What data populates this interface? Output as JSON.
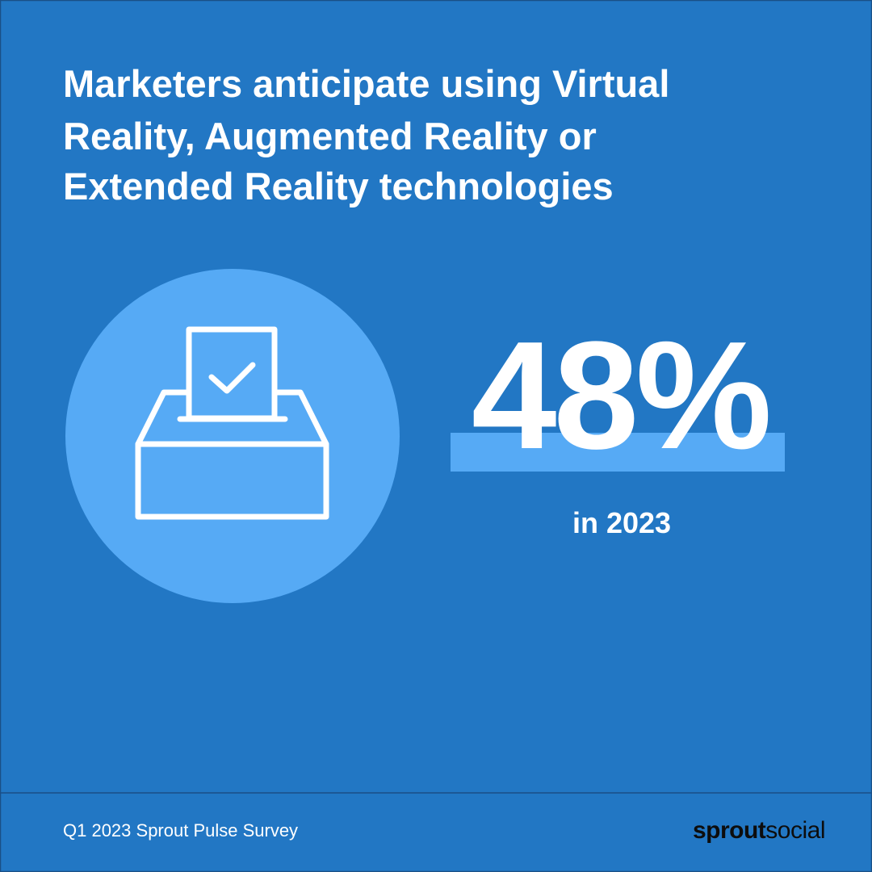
{
  "title": {
    "lines": [
      "Marketers anticipate using Virtual",
      "Reality, Augmented Reality or",
      "Extended Reality technologies"
    ]
  },
  "stat": {
    "value": "48%",
    "caption": "in 2023"
  },
  "footer": {
    "source": "Q1 2023 Sprout Pulse Survey",
    "logo": {
      "bold": "sprout",
      "light": "social"
    }
  }
}
